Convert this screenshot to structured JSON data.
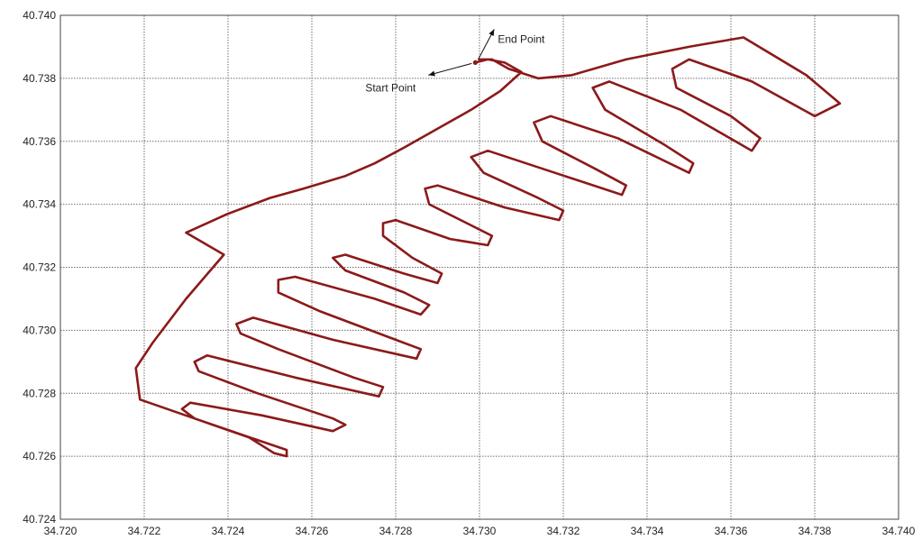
{
  "chart_data": {
    "type": "line",
    "title": "",
    "xlabel": "",
    "ylabel": "",
    "xlim": [
      34.72,
      34.74
    ],
    "ylim": [
      40.724,
      40.74
    ],
    "grid": true,
    "x_ticks": [
      "34.720",
      "34.722",
      "34.724",
      "34.726",
      "34.728",
      "34.730",
      "34.732",
      "34.734",
      "34.736",
      "34.738",
      "34.740"
    ],
    "y_ticks": [
      "40.724",
      "40.726",
      "40.728",
      "40.730",
      "40.732",
      "40.734",
      "40.736",
      "40.738",
      "40.740"
    ],
    "line_color": "#8b1a1a",
    "annotations": {
      "start": {
        "text": "Start Point",
        "x": 34.7299,
        "y": 40.7385
      },
      "end": {
        "text": "End Point",
        "x": 34.7299,
        "y": 40.7385
      }
    },
    "series": [
      {
        "points": [
          [
            34.7299,
            40.7385
          ],
          [
            34.7302,
            40.7386
          ],
          [
            34.7306,
            40.7385
          ],
          [
            34.731,
            40.7382
          ],
          [
            34.7305,
            40.7376
          ],
          [
            34.7298,
            40.737
          ],
          [
            34.729,
            40.7364
          ],
          [
            34.7282,
            40.7358
          ],
          [
            34.7275,
            40.7353
          ],
          [
            34.7268,
            40.7349
          ],
          [
            34.7263,
            40.7347
          ],
          [
            34.7258,
            40.7345
          ],
          [
            34.725,
            40.7342
          ],
          [
            34.724,
            40.7337
          ],
          [
            34.723,
            40.7331
          ],
          [
            34.7239,
            40.7324
          ],
          [
            34.723,
            40.731
          ],
          [
            34.7222,
            40.7296
          ],
          [
            34.7218,
            40.7288
          ],
          [
            34.7219,
            40.7278
          ],
          [
            34.7232,
            40.7272
          ],
          [
            34.7245,
            40.7266
          ],
          [
            34.7251,
            40.7261
          ],
          [
            34.7254,
            40.726
          ],
          [
            34.7254,
            40.7262
          ],
          [
            34.7243,
            40.7267
          ],
          [
            34.7232,
            40.7272
          ],
          [
            34.7229,
            40.7275
          ],
          [
            34.7231,
            40.7277
          ],
          [
            34.7248,
            40.7273
          ],
          [
            34.7265,
            40.7268
          ],
          [
            34.7268,
            40.727
          ],
          [
            34.7265,
            40.7272
          ],
          [
            34.7247,
            40.728
          ],
          [
            34.7233,
            40.7287
          ],
          [
            34.7232,
            40.729
          ],
          [
            34.7235,
            40.7292
          ],
          [
            34.7256,
            40.7285
          ],
          [
            34.7276,
            40.7279
          ],
          [
            34.7277,
            40.7282
          ],
          [
            34.727,
            40.7285
          ],
          [
            34.7252,
            40.7294
          ],
          [
            34.7243,
            40.7299
          ],
          [
            34.7242,
            40.7302
          ],
          [
            34.7246,
            40.7304
          ],
          [
            34.7265,
            40.7297
          ],
          [
            34.7285,
            40.7291
          ],
          [
            34.7286,
            40.7294
          ],
          [
            34.728,
            40.7297
          ],
          [
            34.7262,
            40.7306
          ],
          [
            34.7252,
            40.7312
          ],
          [
            34.7252,
            40.7316
          ],
          [
            34.7256,
            40.7317
          ],
          [
            34.7275,
            40.731
          ],
          [
            34.7286,
            40.7305
          ],
          [
            34.7288,
            40.7308
          ],
          [
            34.7282,
            40.7312
          ],
          [
            34.7268,
            40.7319
          ],
          [
            34.7265,
            40.7323
          ],
          [
            34.7268,
            40.7324
          ],
          [
            34.7282,
            40.7318
          ],
          [
            34.729,
            40.7315
          ],
          [
            34.7291,
            40.7318
          ],
          [
            34.7284,
            40.7323
          ],
          [
            34.7277,
            40.733
          ],
          [
            34.7277,
            40.7334
          ],
          [
            34.728,
            40.7335
          ],
          [
            34.7293,
            40.7329
          ],
          [
            34.7302,
            40.7327
          ],
          [
            34.7303,
            40.733
          ],
          [
            34.7297,
            40.7334
          ],
          [
            34.7288,
            40.734
          ],
          [
            34.7287,
            40.7345
          ],
          [
            34.729,
            40.7346
          ],
          [
            34.7306,
            40.7339
          ],
          [
            34.7319,
            40.7335
          ],
          [
            34.732,
            40.7338
          ],
          [
            34.7314,
            40.7342
          ],
          [
            34.7301,
            40.735
          ],
          [
            34.7298,
            40.7355
          ],
          [
            34.7302,
            40.7357
          ],
          [
            34.7318,
            40.735
          ],
          [
            34.7334,
            40.7343
          ],
          [
            34.7335,
            40.7346
          ],
          [
            34.7328,
            40.7351
          ],
          [
            34.7315,
            40.736
          ],
          [
            34.7313,
            40.7366
          ],
          [
            34.7317,
            40.7368
          ],
          [
            34.7333,
            40.7361
          ],
          [
            34.735,
            40.735
          ],
          [
            34.7351,
            40.7353
          ],
          [
            34.7344,
            40.7359
          ],
          [
            34.733,
            40.737
          ],
          [
            34.7327,
            40.7377
          ],
          [
            34.7331,
            40.7379
          ],
          [
            34.7348,
            40.737
          ],
          [
            34.7365,
            40.7357
          ],
          [
            34.7367,
            40.7361
          ],
          [
            34.736,
            40.7368
          ],
          [
            34.7347,
            40.7377
          ],
          [
            34.7346,
            40.7383
          ],
          [
            34.735,
            40.7386
          ],
          [
            34.7365,
            40.7379
          ],
          [
            34.738,
            40.7368
          ],
          [
            34.7386,
            40.7372
          ],
          [
            34.7378,
            40.7381
          ],
          [
            34.7363,
            40.7393
          ],
          [
            34.735,
            40.739
          ],
          [
            34.7335,
            40.7386
          ],
          [
            34.7322,
            40.7381
          ],
          [
            34.7314,
            40.738
          ],
          [
            34.7307,
            40.7383
          ],
          [
            34.7303,
            40.7386
          ],
          [
            34.73,
            40.7386
          ]
        ]
      }
    ]
  }
}
